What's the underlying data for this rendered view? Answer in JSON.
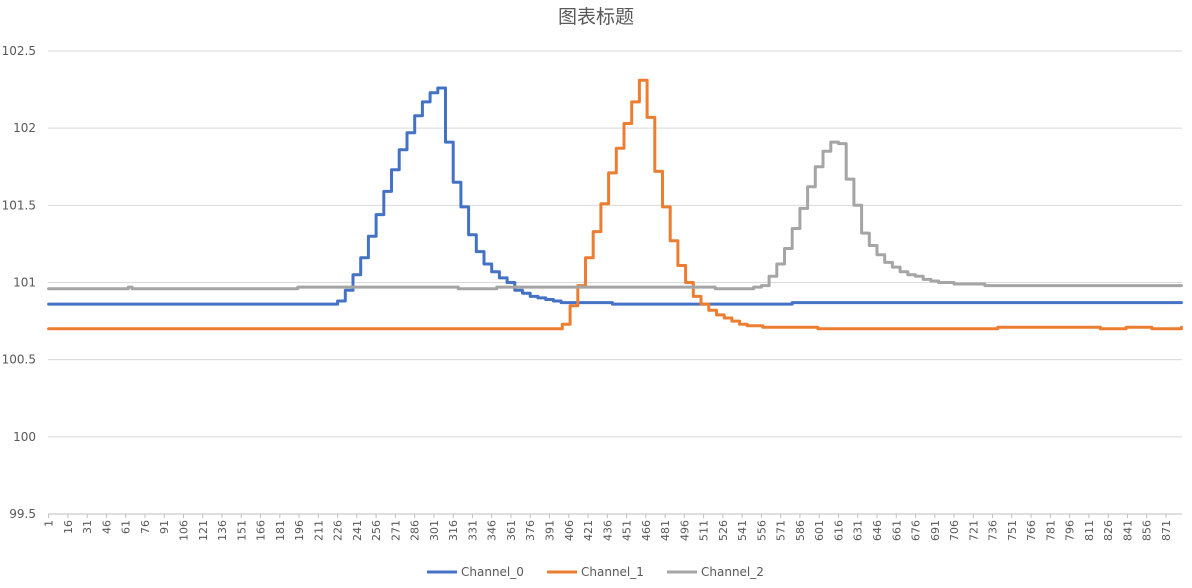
{
  "chart_data": {
    "type": "line",
    "title": "图表标题",
    "xlabel": "",
    "ylabel": "",
    "ylim": [
      99.5,
      102.5
    ],
    "yticks": [
      "99.5",
      "100",
      "100.5",
      "101",
      "101.5",
      "102",
      "102.5"
    ],
    "xlim": [
      1,
      883
    ],
    "xtick_start": 1,
    "xtick_step": 15,
    "xtick_labels": [
      "1",
      "16",
      "31",
      "46",
      "61",
      "76",
      "91",
      "106",
      "121",
      "136",
      "151",
      "166",
      "181",
      "196",
      "211",
      "226",
      "241",
      "256",
      "271",
      "286",
      "301",
      "316",
      "331",
      "346",
      "361",
      "376",
      "391",
      "406",
      "421",
      "436",
      "451",
      "466",
      "481",
      "496",
      "511",
      "526",
      "541",
      "556",
      "571",
      "586",
      "601",
      "616",
      "631",
      "646",
      "661",
      "676",
      "691",
      "706",
      "721",
      "736",
      "751",
      "766",
      "781",
      "796",
      "811",
      "826",
      "841",
      "856",
      "871"
    ],
    "grid": true,
    "legend_position": "bottom",
    "series": [
      {
        "name": "Channel_0",
        "color": "#4472C4",
        "points": [
          [
            1,
            100.86
          ],
          [
            220,
            100.86
          ],
          [
            226,
            100.88
          ],
          [
            232,
            100.95
          ],
          [
            238,
            101.05
          ],
          [
            244,
            101.16
          ],
          [
            250,
            101.3
          ],
          [
            256,
            101.44
          ],
          [
            262,
            101.59
          ],
          [
            268,
            101.73
          ],
          [
            274,
            101.86
          ],
          [
            280,
            101.97
          ],
          [
            286,
            102.08
          ],
          [
            292,
            102.17
          ],
          [
            298,
            102.23
          ],
          [
            304,
            102.26
          ],
          [
            310,
            101.91
          ],
          [
            316,
            101.65
          ],
          [
            322,
            101.49
          ],
          [
            328,
            101.31
          ],
          [
            334,
            101.2
          ],
          [
            340,
            101.12
          ],
          [
            346,
            101.07
          ],
          [
            352,
            101.03
          ],
          [
            358,
            101.0
          ],
          [
            364,
            100.95
          ],
          [
            370,
            100.93
          ],
          [
            376,
            100.91
          ],
          [
            382,
            100.9
          ],
          [
            388,
            100.89
          ],
          [
            394,
            100.88
          ],
          [
            400,
            100.87
          ],
          [
            420,
            100.87
          ],
          [
            440,
            100.86
          ],
          [
            540,
            100.86
          ],
          [
            580,
            100.87
          ],
          [
            883,
            100.87
          ]
        ]
      },
      {
        "name": "Channel_1",
        "color": "#ED7D31",
        "points": [
          [
            1,
            100.7
          ],
          [
            395,
            100.7
          ],
          [
            401,
            100.73
          ],
          [
            407,
            100.85
          ],
          [
            413,
            100.98
          ],
          [
            419,
            101.16
          ],
          [
            425,
            101.33
          ],
          [
            431,
            101.51
          ],
          [
            437,
            101.71
          ],
          [
            443,
            101.87
          ],
          [
            449,
            102.03
          ],
          [
            455,
            102.17
          ],
          [
            461,
            102.31
          ],
          [
            467,
            102.07
          ],
          [
            473,
            101.72
          ],
          [
            479,
            101.49
          ],
          [
            485,
            101.27
          ],
          [
            491,
            101.11
          ],
          [
            497,
            101.0
          ],
          [
            503,
            100.91
          ],
          [
            509,
            100.86
          ],
          [
            515,
            100.82
          ],
          [
            521,
            100.79
          ],
          [
            527,
            100.77
          ],
          [
            533,
            100.75
          ],
          [
            539,
            100.73
          ],
          [
            545,
            100.72
          ],
          [
            551,
            100.72
          ],
          [
            557,
            100.71
          ],
          [
            570,
            100.71
          ],
          [
            600,
            100.7
          ],
          [
            720,
            100.7
          ],
          [
            740,
            100.71
          ],
          [
            800,
            100.71
          ],
          [
            820,
            100.7
          ],
          [
            840,
            100.71
          ],
          [
            860,
            100.7
          ],
          [
            883,
            100.71
          ]
        ]
      },
      {
        "name": "Channel_2",
        "color": "#A5A5A5",
        "points": [
          [
            1,
            100.96
          ],
          [
            60,
            100.96
          ],
          [
            63,
            100.97
          ],
          [
            66,
            100.96
          ],
          [
            185,
            100.96
          ],
          [
            195,
            100.97
          ],
          [
            300,
            100.97
          ],
          [
            320,
            100.96
          ],
          [
            350,
            100.97
          ],
          [
            520,
            100.96
          ],
          [
            550,
            100.97
          ],
          [
            556,
            100.98
          ],
          [
            562,
            101.04
          ],
          [
            568,
            101.12
          ],
          [
            574,
            101.22
          ],
          [
            580,
            101.35
          ],
          [
            586,
            101.48
          ],
          [
            592,
            101.62
          ],
          [
            598,
            101.75
          ],
          [
            604,
            101.85
          ],
          [
            610,
            101.91
          ],
          [
            616,
            101.9
          ],
          [
            622,
            101.67
          ],
          [
            628,
            101.5
          ],
          [
            634,
            101.32
          ],
          [
            640,
            101.24
          ],
          [
            646,
            101.18
          ],
          [
            652,
            101.13
          ],
          [
            658,
            101.1
          ],
          [
            664,
            101.07
          ],
          [
            670,
            101.05
          ],
          [
            676,
            101.04
          ],
          [
            682,
            101.02
          ],
          [
            688,
            101.01
          ],
          [
            694,
            101.0
          ],
          [
            706,
            100.99
          ],
          [
            730,
            100.98
          ],
          [
            883,
            100.98
          ]
        ]
      }
    ]
  }
}
